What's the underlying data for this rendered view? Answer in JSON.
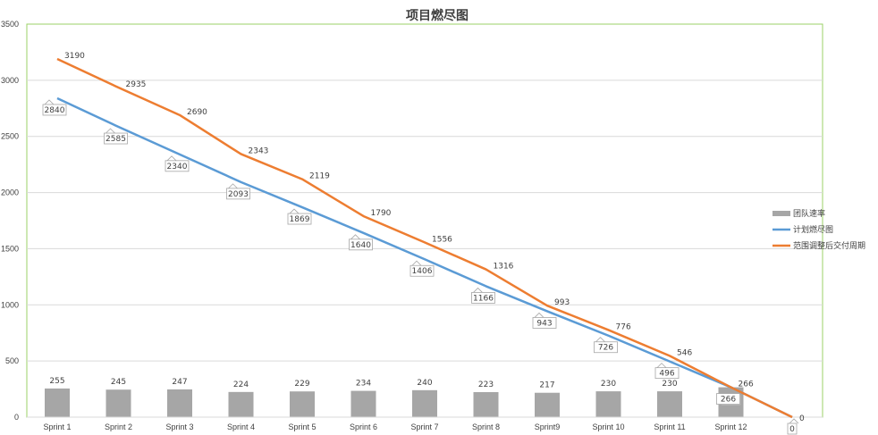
{
  "chart_data": {
    "type": "bar+line",
    "title": "项目燃尽图",
    "categories": [
      "Sprint 1",
      "Sprint 2",
      "Sprint 3",
      "Sprint 4",
      "Sprint 5",
      "Sprint 6",
      "Sprint 7",
      "Sprint 8",
      "Sprint9",
      "Sprint 10",
      "Sprint 11",
      "Sprint 12",
      ""
    ],
    "ylim": [
      0,
      3500
    ],
    "yticks": [
      0,
      500,
      1000,
      1500,
      2000,
      2500,
      3000,
      3500
    ],
    "grid": true,
    "legend_position": "right",
    "series": [
      {
        "name": "团队速率",
        "type": "bar",
        "color": "#a6a6a6",
        "values": [
          255,
          245,
          247,
          224,
          229,
          234,
          240,
          223,
          217,
          230,
          230,
          266,
          null
        ]
      },
      {
        "name": "计划燃尽图",
        "type": "line",
        "color": "#5b9bd5",
        "values": [
          2840,
          2585,
          2340,
          2093,
          1869,
          1640,
          1406,
          1166,
          943,
          726,
          496,
          266,
          0
        ]
      },
      {
        "name": "范围调整后交付周期",
        "type": "line",
        "color": "#ed7d31",
        "values": [
          3190,
          2935,
          2690,
          2343,
          2119,
          1790,
          1556,
          1316,
          993,
          776,
          546,
          266,
          0
        ]
      }
    ]
  }
}
